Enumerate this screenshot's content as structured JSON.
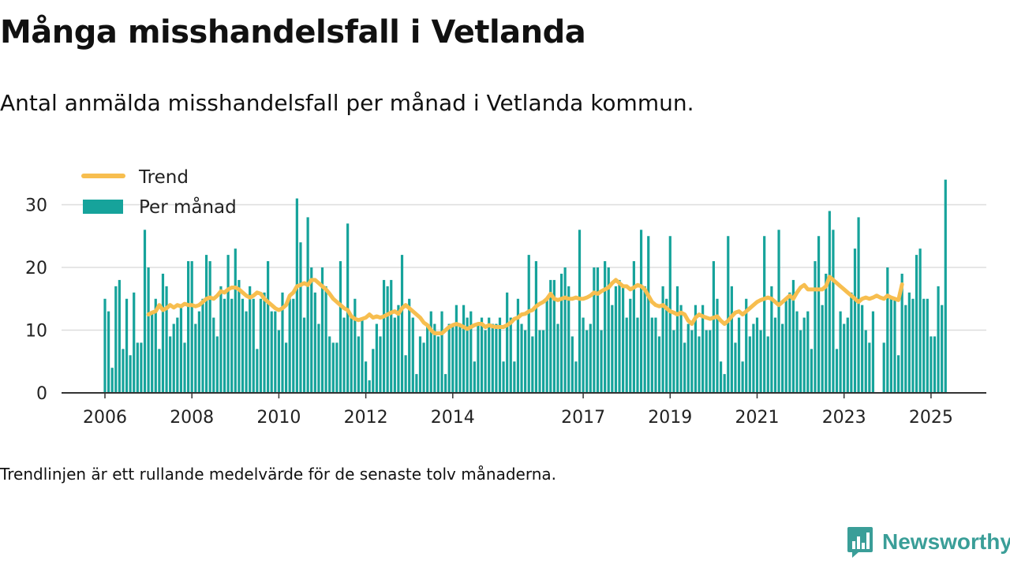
{
  "title": "Många misshandelsfall i Vetlanda",
  "subtitle": "Antal anmälda misshandelsfall per månad i Vetlanda kommun.",
  "note": "Trendlinjen är ett rullande medelvärde för de senaste tolv månaderna.",
  "brand": {
    "name": "Newsworthy",
    "icon": "newsworthy-logo-icon"
  },
  "colors": {
    "bars": "#16a39b",
    "trend": "#f7be4f",
    "grid": "#dddddd",
    "axis": "#333333"
  },
  "chart_data": {
    "type": "bar",
    "title": "Många misshandelsfall i Vetlanda",
    "subtitle": "Antal anmälda misshandelsfall per månad i Vetlanda kommun.",
    "start_month": "2006-01",
    "ylim": [
      0,
      35
    ],
    "yticks": [
      0,
      10,
      20,
      30
    ],
    "xticks": [
      "2006",
      "2008",
      "2010",
      "2012",
      "2014",
      "2017",
      "2019",
      "2021",
      "2023",
      "2025"
    ],
    "grid": true,
    "legend_position": "top-left",
    "series": [
      {
        "name": "Per månad",
        "type": "bar",
        "values": [
          15,
          13,
          4,
          17,
          18,
          7,
          15,
          6,
          16,
          8,
          8,
          26,
          20,
          13,
          15,
          7,
          19,
          17,
          9,
          11,
          12,
          14,
          8,
          21,
          21,
          11,
          13,
          15,
          22,
          21,
          12,
          9,
          17,
          15,
          22,
          15,
          23,
          18,
          15,
          13,
          17,
          15,
          7,
          15,
          16,
          21,
          13,
          13,
          10,
          16,
          8,
          15,
          15,
          31,
          24,
          12,
          28,
          20,
          16,
          11,
          20,
          17,
          9,
          8,
          8,
          21,
          12,
          27,
          12,
          15,
          9,
          12,
          5,
          2,
          7,
          11,
          9,
          18,
          17,
          18,
          12,
          14,
          22,
          6,
          15,
          12,
          3,
          9,
          8,
          11,
          13,
          11,
          9,
          13,
          3,
          11,
          11,
          14,
          11,
          14,
          12,
          13,
          5,
          11,
          12,
          10,
          12,
          11,
          11,
          12,
          5,
          16,
          12,
          5,
          15,
          11,
          10,
          22,
          9,
          21,
          10,
          10,
          15,
          18,
          18,
          11,
          19,
          20,
          17,
          9,
          5,
          26,
          12,
          10,
          11,
          20,
          20,
          10,
          21,
          20,
          14,
          17,
          18,
          17,
          12,
          15,
          21,
          12,
          26,
          17,
          25,
          12,
          12,
          9,
          17,
          15,
          25,
          10,
          17,
          14,
          8,
          11,
          10,
          14,
          9,
          14,
          10,
          10,
          21,
          15,
          5,
          3,
          25,
          17,
          8,
          12,
          5,
          15,
          9,
          11,
          12,
          10,
          25,
          9,
          17,
          12,
          26,
          11,
          15,
          16,
          18,
          13,
          10,
          12,
          13,
          7,
          21,
          25,
          14,
          19,
          29,
          26,
          7,
          13,
          11,
          12,
          16,
          23,
          28,
          14,
          10,
          8,
          13,
          0,
          0,
          8,
          20,
          15,
          15,
          6,
          19,
          14,
          16,
          15,
          22,
          23,
          15,
          15,
          9,
          9,
          17,
          14,
          34
        ]
      },
      {
        "name": "Trend",
        "type": "line",
        "start_index": 12,
        "values": [
          12.5,
          12.8,
          13.0,
          14.0,
          13.2,
          13.5,
          14.0,
          13.6,
          14.0,
          13.8,
          14.2,
          14.0,
          14.0,
          13.8,
          14.0,
          14.5,
          15.0,
          15.2,
          15.0,
          15.5,
          16.2,
          16.0,
          16.5,
          16.8,
          16.8,
          16.5,
          16.0,
          15.5,
          15.2,
          15.5,
          16.0,
          15.8,
          15.0,
          14.5,
          14.0,
          13.5,
          13.2,
          13.5,
          14.0,
          15.5,
          16.0,
          17.0,
          17.2,
          17.5,
          17.2,
          18.0,
          18.0,
          17.5,
          17.0,
          16.5,
          15.8,
          15.0,
          14.5,
          14.0,
          13.5,
          13.2,
          12.2,
          11.8,
          11.6,
          11.8,
          12.0,
          12.5,
          12.0,
          12.2,
          12.0,
          12.2,
          12.5,
          12.8,
          13.0,
          12.6,
          13.5,
          14.0,
          13.5,
          13.0,
          12.5,
          12.0,
          11.2,
          10.8,
          10.0,
          9.5,
          9.5,
          9.5,
          10.0,
          10.5,
          10.8,
          11.0,
          10.8,
          10.5,
          10.2,
          10.5,
          10.8,
          11.0,
          11.0,
          10.5,
          10.8,
          10.6,
          10.5,
          10.5,
          10.5,
          10.8,
          11.2,
          11.8,
          12.0,
          12.5,
          12.6,
          13.0,
          13.2,
          13.8,
          14.2,
          14.5,
          15.0,
          15.8,
          15.0,
          14.8,
          15.0,
          15.2,
          15.0,
          15.0,
          15.2,
          15.0,
          15.0,
          15.2,
          15.5,
          16.0,
          15.8,
          16.2,
          16.5,
          16.8,
          17.5,
          18.0,
          17.5,
          17.0,
          17.0,
          16.5,
          16.8,
          17.2,
          17.0,
          16.5,
          15.5,
          14.5,
          14.0,
          13.8,
          14.0,
          13.5,
          13.0,
          12.8,
          12.5,
          12.8,
          12.5,
          11.5,
          11.0,
          12.0,
          12.5,
          12.2,
          12.0,
          11.8,
          12.0,
          12.2,
          11.5,
          11.0,
          11.5,
          12.2,
          12.8,
          13.0,
          12.5,
          13.0,
          13.5,
          14.0,
          14.5,
          14.8,
          15.0,
          15.2,
          15.0,
          14.5,
          14.0,
          14.5,
          15.0,
          15.5,
          15.0,
          16.0,
          16.8,
          17.2,
          16.5,
          16.5,
          16.5,
          16.5,
          16.5,
          17.0,
          18.5,
          18.0,
          17.5,
          17.0,
          16.5,
          16.0,
          15.5,
          15.0,
          14.5,
          15.0,
          15.2,
          15.0,
          15.2,
          15.5,
          15.2,
          15.0,
          15.5,
          15.2,
          15.0,
          14.8,
          17.3
        ]
      }
    ]
  }
}
